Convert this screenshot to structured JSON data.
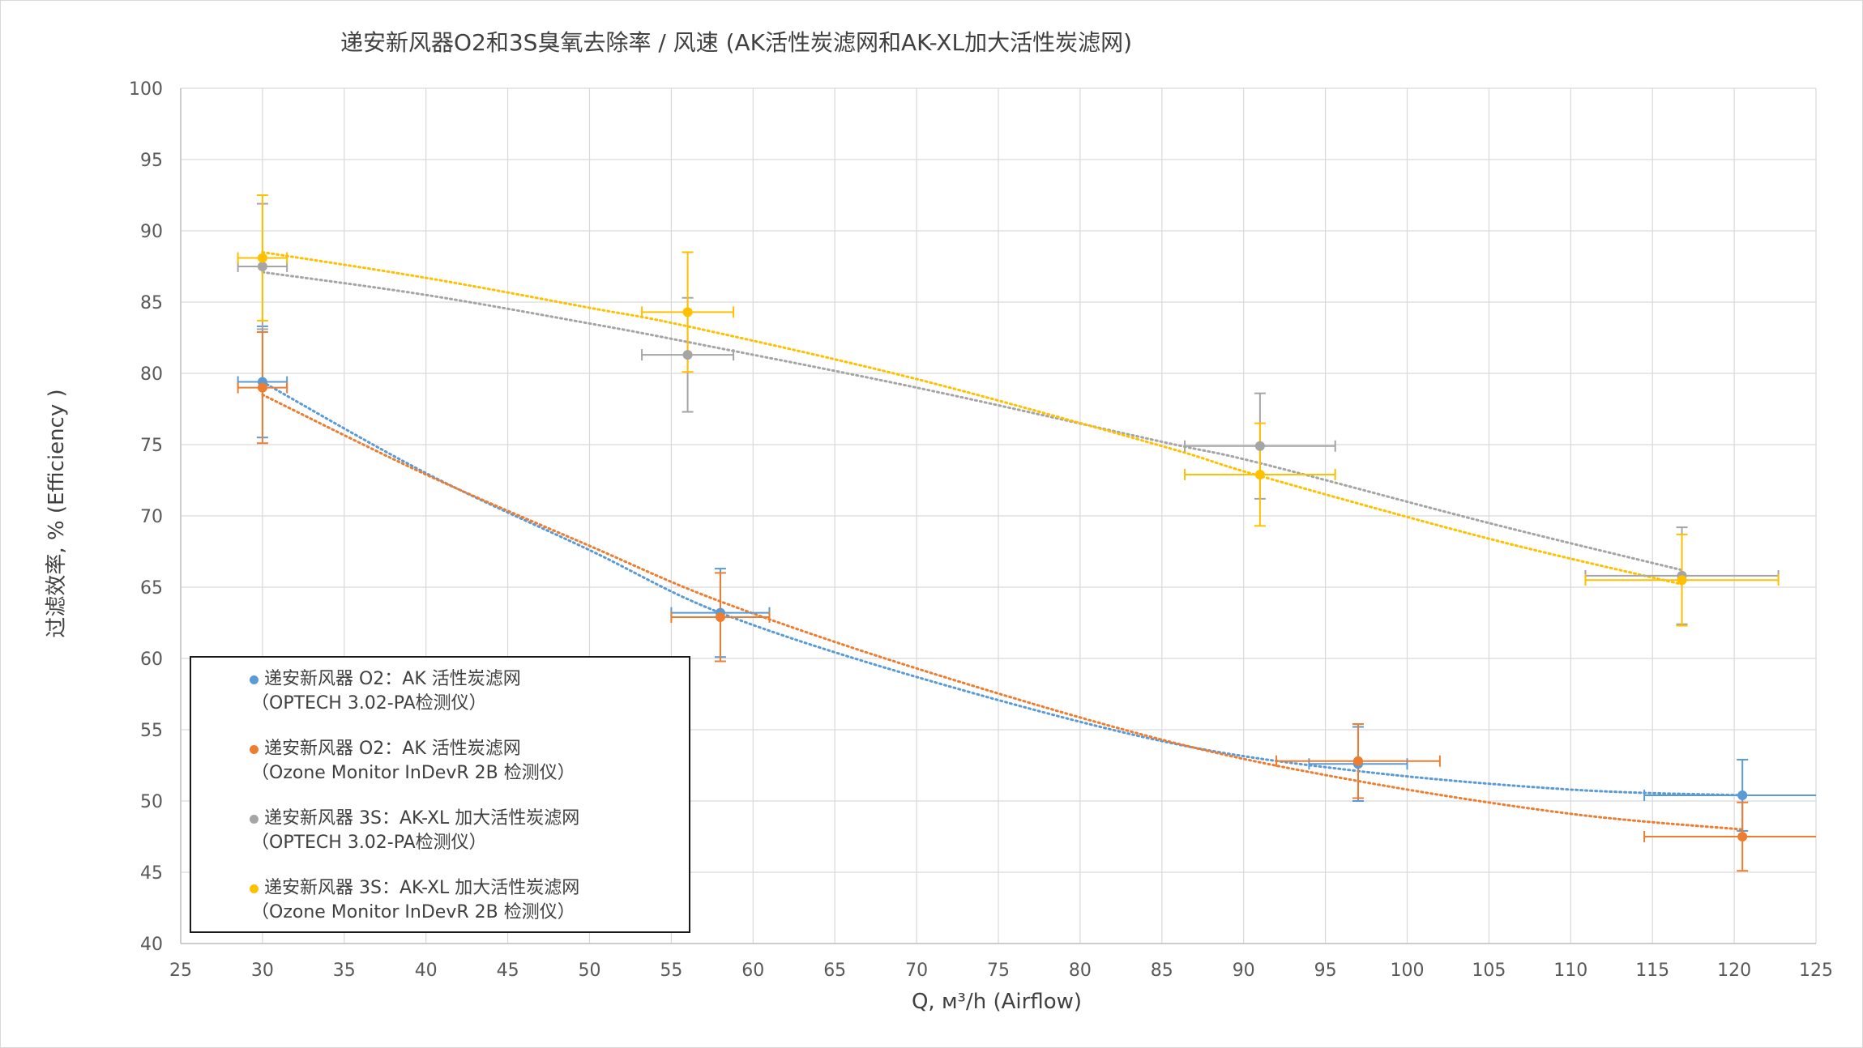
{
  "chart_data": {
    "type": "scatter",
    "title": "递安新风器O2和3S臭氧去除率 / 风速 (AK活性炭滤网和AK-XL加大活性炭滤网)",
    "xlabel": "Q, м³/h (Airflow)",
    "ylabel": "过滤效率, % (Efficiency )",
    "xlim": [
      25,
      125
    ],
    "ylim": [
      40,
      100
    ],
    "x_ticks": [
      "25",
      "30",
      "35",
      "40",
      "45",
      "50",
      "55",
      "60",
      "65",
      "70",
      "75",
      "80",
      "85",
      "90",
      "95",
      "100",
      "105",
      "110",
      "115",
      "120",
      "125"
    ],
    "y_ticks": [
      "40",
      "45",
      "50",
      "55",
      "60",
      "65",
      "70",
      "75",
      "80",
      "85",
      "90",
      "95",
      "100"
    ],
    "grid": true,
    "trendlines": "dotted polynomial",
    "legend_position": "bottom-left",
    "series": [
      {
        "name": "递安新风器 O2：AK 活性炭滤网",
        "name_line2": "（OPTECH 3.02-PA检测仪）",
        "color": "#5b9bd5",
        "points": [
          {
            "x": 30,
            "y": 79.4,
            "xerr": 1.5,
            "yerr": 3.9
          },
          {
            "x": 58,
            "y": 63.2,
            "xerr": 3.0,
            "yerr": 3.1
          },
          {
            "x": 97,
            "y": 52.6,
            "xerr": 3.0,
            "yerr": 2.6
          },
          {
            "x": 120.5,
            "y": 50.4,
            "xerr": 6.0,
            "yerr": 2.5
          }
        ],
        "trend": [
          [
            30,
            79.4
          ],
          [
            40,
            73.0
          ],
          [
            50,
            67.6
          ],
          [
            58,
            63.2
          ],
          [
            70,
            58.7
          ],
          [
            85,
            54.2
          ],
          [
            97,
            52.1
          ],
          [
            110,
            50.8
          ],
          [
            120.5,
            50.4
          ]
        ]
      },
      {
        "name": "递安新风器 O2：AK 活性炭滤网",
        "name_line2": "（Ozone Monitor InDevR 2B 检测仪）",
        "color": "#ed7d31",
        "points": [
          {
            "x": 30,
            "y": 79.0,
            "xerr": 1.5,
            "yerr": 3.9
          },
          {
            "x": 58,
            "y": 62.9,
            "xerr": 3.0,
            "yerr": 3.1
          },
          {
            "x": 97,
            "y": 52.8,
            "xerr": 5.0,
            "yerr": 2.6
          },
          {
            "x": 120.5,
            "y": 47.5,
            "xerr": 6.0,
            "yerr": 2.4
          }
        ],
        "trend": [
          [
            30,
            78.5
          ],
          [
            40,
            72.9
          ],
          [
            50,
            67.9
          ],
          [
            58,
            64.0
          ],
          [
            70,
            59.3
          ],
          [
            85,
            54.3
          ],
          [
            97,
            51.4
          ],
          [
            110,
            49.1
          ],
          [
            120.5,
            48.0
          ]
        ]
      },
      {
        "name": "递安新风器 3S：AK-XL 加大活性炭滤网",
        "name_line2": "（OPTECH 3.02-PA检测仪）",
        "color": "#a5a5a5",
        "points": [
          {
            "x": 30,
            "y": 87.5,
            "xerr": 1.5,
            "yerr": 4.4
          },
          {
            "x": 56,
            "y": 81.3,
            "xerr": 2.8,
            "yerr": 4.0
          },
          {
            "x": 91,
            "y": 74.9,
            "xerr": 4.6,
            "yerr": 3.7
          },
          {
            "x": 116.8,
            "y": 65.8,
            "xerr": 5.9,
            "yerr": 3.4
          }
        ],
        "trend": [
          [
            30,
            87.1
          ],
          [
            40,
            85.5
          ],
          [
            50,
            83.5
          ],
          [
            56,
            82.2
          ],
          [
            70,
            79.0
          ],
          [
            85,
            75.2
          ],
          [
            91,
            73.7
          ],
          [
            105,
            69.5
          ],
          [
            116.8,
            66.2
          ]
        ]
      },
      {
        "name": "递安新风器 3S：AK-XL 加大活性炭滤网",
        "name_line2": "（Ozone Monitor InDevR 2B 检测仪）",
        "color": "#ffc000",
        "points": [
          {
            "x": 30,
            "y": 88.1,
            "xerr": 1.5,
            "yerr": 4.4
          },
          {
            "x": 56,
            "y": 84.3,
            "xerr": 2.8,
            "yerr": 4.2
          },
          {
            "x": 91,
            "y": 72.9,
            "xerr": 4.6,
            "yerr": 3.6
          },
          {
            "x": 116.8,
            "y": 65.5,
            "xerr": 5.9,
            "yerr": 3.2
          }
        ],
        "trend": [
          [
            30,
            88.5
          ],
          [
            40,
            86.7
          ],
          [
            50,
            84.6
          ],
          [
            56,
            83.3
          ],
          [
            70,
            79.6
          ],
          [
            85,
            74.9
          ],
          [
            91,
            72.8
          ],
          [
            105,
            68.4
          ],
          [
            116.8,
            65.2
          ]
        ]
      }
    ]
  }
}
